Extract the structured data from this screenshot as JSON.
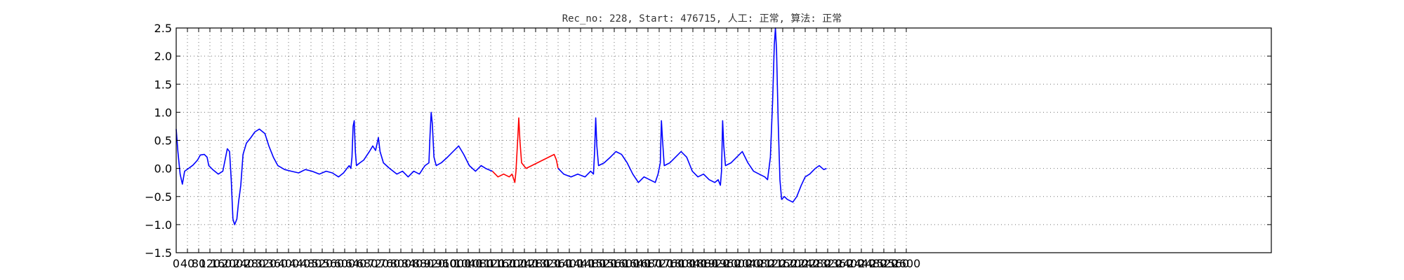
{
  "title": "Rec_no: 228, Start: 476715, 人工: 正常, 算法: 正常",
  "chart_data": {
    "type": "line",
    "title": "Rec_no: 228, Start: 476715, 人工: 正常, 算法: 正常",
    "xlabel": "",
    "ylabel": "",
    "xlim": [
      0,
      3900
    ],
    "ylim": [
      -1.5,
      2.5
    ],
    "grid": true,
    "colors": {
      "normal_segment": "#0000ff",
      "highlighted_segment": "#ff0000"
    },
    "y_ticks": [
      -1.5,
      -1.0,
      -0.5,
      0.0,
      0.5,
      1.0,
      1.5,
      2.0,
      2.5
    ],
    "y_tick_labels": [
      "−1.5",
      "−1.0",
      "−0.5",
      "0.0",
      "0.5",
      "1.0",
      "1.5",
      "2.0",
      "2.5"
    ],
    "x_ticks": [
      0,
      40,
      80,
      120,
      160,
      200,
      240,
      280,
      320,
      360,
      400,
      440,
      480,
      520,
      560,
      600,
      640,
      680,
      720,
      760,
      800,
      840,
      880,
      920,
      960,
      1000,
      1040,
      1080,
      1120,
      1160,
      1200,
      1240,
      1280,
      1320,
      1360,
      1400,
      1440,
      1480,
      1520,
      1560,
      1600,
      1640,
      1680,
      1720,
      1760,
      1800,
      1840,
      1880,
      1920,
      1960,
      2000,
      2040,
      2080,
      2120,
      2160,
      2200,
      2240,
      2280,
      2320,
      2360,
      2400,
      2440,
      2480,
      2520,
      2560,
      2600
    ],
    "x_tick_labels": [
      "0",
      "40",
      "80",
      "120",
      "160",
      "200",
      "240",
      "280",
      "320",
      "360",
      "400",
      "440",
      "480",
      "520",
      "560",
      "600",
      "640",
      "680",
      "720",
      "760",
      "800",
      "840",
      "880",
      "920",
      "960",
      "1000",
      "1040",
      "1080",
      "1120",
      "1160",
      "1200",
      "1240",
      "1280",
      "1320",
      "1360",
      "1400",
      "1440",
      "1480",
      "1520",
      "1560",
      "1600",
      "1640",
      "1680",
      "1720",
      "1760",
      "1800",
      "1840",
      "1880",
      "1920",
      "1960",
      "2000",
      "2040",
      "2080",
      "2120",
      "2160",
      "2200",
      "2240",
      "2280",
      "2320",
      "2360",
      "2400",
      "2440",
      "2480",
      "2520",
      "2560",
      "2600"
    ],
    "series": [
      {
        "color": "#0000ff",
        "points": [
          [
            0,
            0.7
          ],
          [
            6,
            0.3
          ],
          [
            14,
            -0.1
          ],
          [
            22,
            -0.28
          ],
          [
            30,
            -0.05
          ],
          [
            44,
            0.0
          ],
          [
            60,
            0.06
          ],
          [
            76,
            0.15
          ],
          [
            86,
            0.24
          ],
          [
            100,
            0.25
          ],
          [
            110,
            0.2
          ],
          [
            116,
            0.05
          ],
          [
            130,
            -0.02
          ],
          [
            150,
            -0.1
          ],
          [
            166,
            -0.05
          ],
          [
            174,
            0.15
          ],
          [
            182,
            0.35
          ],
          [
            190,
            0.3
          ],
          [
            196,
            -0.2
          ],
          [
            202,
            -0.9
          ],
          [
            208,
            -1.0
          ],
          [
            216,
            -0.9
          ],
          [
            222,
            -0.6
          ],
          [
            230,
            -0.3
          ],
          [
            238,
            0.25
          ],
          [
            250,
            0.45
          ],
          [
            266,
            0.55
          ],
          [
            280,
            0.65
          ],
          [
            296,
            0.7
          ],
          [
            316,
            0.62
          ],
          [
            330,
            0.4
          ],
          [
            346,
            0.2
          ],
          [
            362,
            0.05
          ],
          [
            386,
            -0.02
          ],
          [
            410,
            -0.05
          ],
          [
            436,
            -0.08
          ],
          [
            460,
            -0.02
          ],
          [
            484,
            -0.05
          ],
          [
            510,
            -0.1
          ],
          [
            534,
            -0.05
          ],
          [
            556,
            -0.08
          ],
          [
            578,
            -0.15
          ],
          [
            596,
            -0.08
          ],
          [
            608,
            0.0
          ],
          [
            616,
            0.05
          ],
          [
            622,
            0.0
          ],
          [
            626,
            0.2
          ],
          [
            630,
            0.75
          ],
          [
            634,
            0.85
          ],
          [
            638,
            0.3
          ],
          [
            642,
            0.05
          ],
          [
            654,
            0.1
          ],
          [
            668,
            0.15
          ],
          [
            688,
            0.3
          ],
          [
            700,
            0.4
          ],
          [
            710,
            0.32
          ],
          [
            720,
            0.55
          ],
          [
            726,
            0.3
          ],
          [
            738,
            0.1
          ],
          [
            760,
            0.0
          ],
          [
            786,
            -0.1
          ],
          [
            806,
            -0.05
          ],
          [
            826,
            -0.15
          ],
          [
            846,
            -0.05
          ],
          [
            866,
            -0.1
          ],
          [
            886,
            0.05
          ],
          [
            900,
            0.1
          ],
          [
            904,
            0.6
          ],
          [
            908,
            1.0
          ],
          [
            912,
            0.8
          ],
          [
            918,
            0.2
          ],
          [
            926,
            0.05
          ],
          [
            944,
            0.1
          ],
          [
            966,
            0.2
          ],
          [
            986,
            0.3
          ],
          [
            1006,
            0.4
          ],
          [
            1024,
            0.25
          ],
          [
            1044,
            0.05
          ],
          [
            1066,
            -0.05
          ],
          [
            1086,
            0.05
          ],
          [
            1102,
            0.0
          ],
          [
            1126,
            -0.05
          ]
        ]
      },
      {
        "color": "#ff0000",
        "points": [
          [
            1126,
            -0.05
          ],
          [
            1146,
            -0.15
          ],
          [
            1166,
            -0.1
          ],
          [
            1186,
            -0.15
          ],
          [
            1196,
            -0.1
          ],
          [
            1206,
            -0.25
          ],
          [
            1210,
            -0.05
          ],
          [
            1216,
            0.5
          ],
          [
            1220,
            0.9
          ],
          [
            1224,
            0.5
          ],
          [
            1230,
            0.1
          ],
          [
            1246,
            0.0
          ],
          [
            1266,
            0.05
          ],
          [
            1286,
            0.1
          ],
          [
            1306,
            0.15
          ],
          [
            1326,
            0.2
          ],
          [
            1346,
            0.25
          ],
          [
            1354,
            0.15
          ],
          [
            1360,
            0.0
          ]
        ]
      },
      {
        "color": "#0000ff",
        "points": [
          [
            1360,
            0.0
          ],
          [
            1380,
            -0.1
          ],
          [
            1406,
            -0.15
          ],
          [
            1430,
            -0.1
          ],
          [
            1456,
            -0.15
          ],
          [
            1476,
            -0.05
          ],
          [
            1486,
            -0.1
          ],
          [
            1490,
            0.3
          ],
          [
            1494,
            0.9
          ],
          [
            1498,
            0.4
          ],
          [
            1504,
            0.05
          ],
          [
            1524,
            0.1
          ],
          [
            1546,
            0.2
          ],
          [
            1566,
            0.3
          ],
          [
            1586,
            0.25
          ],
          [
            1606,
            0.1
          ],
          [
            1626,
            -0.1
          ],
          [
            1646,
            -0.25
          ],
          [
            1666,
            -0.15
          ],
          [
            1686,
            -0.2
          ],
          [
            1706,
            -0.25
          ],
          [
            1716,
            -0.1
          ],
          [
            1724,
            0.1
          ],
          [
            1728,
            0.85
          ],
          [
            1732,
            0.5
          ],
          [
            1738,
            0.05
          ],
          [
            1758,
            0.1
          ],
          [
            1778,
            0.2
          ],
          [
            1798,
            0.3
          ],
          [
            1818,
            0.2
          ],
          [
            1838,
            -0.05
          ],
          [
            1858,
            -0.15
          ],
          [
            1878,
            -0.1
          ],
          [
            1898,
            -0.2
          ],
          [
            1918,
            -0.25
          ],
          [
            1930,
            -0.2
          ],
          [
            1938,
            -0.3
          ],
          [
            1942,
            -0.05
          ],
          [
            1946,
            0.85
          ],
          [
            1950,
            0.4
          ],
          [
            1956,
            0.05
          ],
          [
            1976,
            0.1
          ],
          [
            1996,
            0.2
          ],
          [
            2016,
            0.3
          ],
          [
            2036,
            0.1
          ],
          [
            2056,
            -0.05
          ],
          [
            2076,
            -0.1
          ],
          [
            2096,
            -0.15
          ],
          [
            2106,
            -0.2
          ],
          [
            2116,
            0.2
          ],
          [
            2124,
            1.2
          ],
          [
            2130,
            2.2
          ],
          [
            2134,
            2.5
          ],
          [
            2138,
            2.1
          ],
          [
            2144,
            0.8
          ],
          [
            2150,
            -0.2
          ],
          [
            2156,
            -0.55
          ],
          [
            2166,
            -0.5
          ],
          [
            2176,
            -0.55
          ],
          [
            2196,
            -0.6
          ],
          [
            2210,
            -0.5
          ],
          [
            2226,
            -0.3
          ],
          [
            2240,
            -0.15
          ],
          [
            2256,
            -0.1
          ],
          [
            2276,
            0.0
          ],
          [
            2290,
            0.05
          ],
          [
            2306,
            -0.02
          ],
          [
            2316,
            0.0
          ]
        ]
      }
    ]
  }
}
